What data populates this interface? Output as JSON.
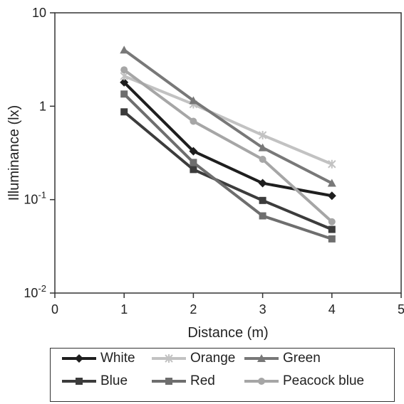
{
  "chart_data": {
    "type": "line",
    "xlabel": "Distance  (m)",
    "ylabel": "Illuminance (lx)",
    "xlim": [
      0,
      5
    ],
    "ylim": [
      0.01,
      10
    ],
    "yscale": "log",
    "x_ticks": [
      "0",
      "1",
      "2",
      "3",
      "4",
      "5"
    ],
    "y_ticks": [
      {
        "base": "10",
        "exp": "-2"
      },
      {
        "base": "10",
        "exp": "-1"
      },
      {
        "base": "1",
        "exp": ""
      },
      {
        "base": "10",
        "exp": ""
      }
    ],
    "grid": false,
    "legend": "bottom",
    "x": [
      1,
      2,
      3,
      4
    ],
    "series": [
      {
        "name": "White",
        "values": [
          1.8,
          0.33,
          0.15,
          0.11
        ],
        "color": "#1e1e1e",
        "marker": "diamond"
      },
      {
        "name": "Orange",
        "values": [
          2.1,
          1.05,
          0.49,
          0.24
        ],
        "color": "#c2c2c2",
        "marker": "x"
      },
      {
        "name": "Green",
        "values": [
          4.0,
          1.15,
          0.36,
          0.15
        ],
        "color": "#787878",
        "marker": "triangle"
      },
      {
        "name": "Blue",
        "values": [
          0.87,
          0.21,
          0.098,
          0.048
        ],
        "color": "#3c3c3c",
        "marker": "square"
      },
      {
        "name": "Red",
        "values": [
          1.35,
          0.25,
          0.067,
          0.038
        ],
        "color": "#6e6e6e",
        "marker": "square"
      },
      {
        "name": "Peacock  blue",
        "values": [
          2.45,
          0.69,
          0.27,
          0.058
        ],
        "color": "#a6a6a6",
        "marker": "circle"
      }
    ]
  }
}
